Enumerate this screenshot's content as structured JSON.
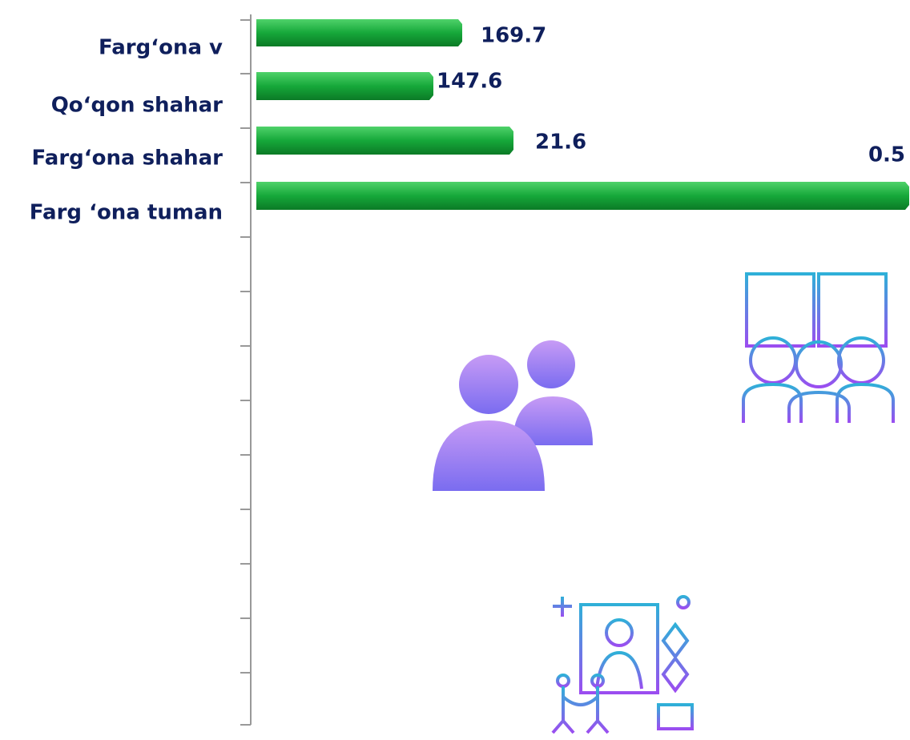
{
  "rows": [
    {
      "label": "Farg‘ona v",
      "value_label": "169.7"
    },
    {
      "label": "Qo‘qon shahar",
      "value_label": "147.6"
    },
    {
      "label": "Farg‘ona shahar",
      "value_label": "21.6"
    },
    {
      "label": "Farg ‘ona tuman",
      "value_label": "0.5"
    }
  ]
}
